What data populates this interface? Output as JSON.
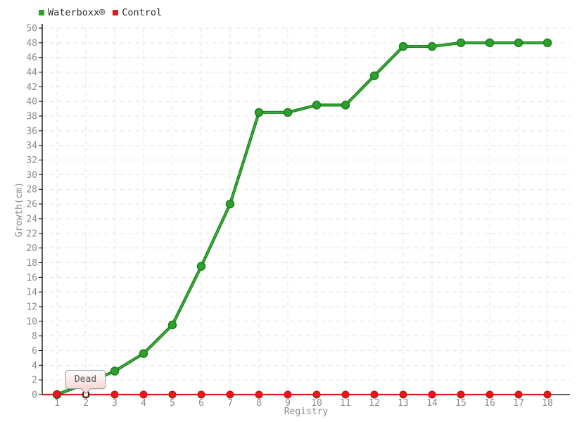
{
  "legend": {
    "items": [
      {
        "label": "Waterboxx®",
        "color": "#2CA22C"
      },
      {
        "label": "Control",
        "color": "#E11A1A"
      }
    ]
  },
  "tooltip": {
    "text": "Dead",
    "series": "Control",
    "x": 2,
    "value": 0
  },
  "chart_data": {
    "type": "line",
    "x": [
      1,
      2,
      3,
      4,
      5,
      6,
      7,
      8,
      9,
      10,
      11,
      12,
      13,
      14,
      15,
      16,
      17,
      18
    ],
    "series": [
      {
        "name": "Waterboxx®",
        "color": "#2CA22C",
        "edge_color": "#1C7E1C",
        "highlight_color": "#38B038",
        "values": [
          0,
          1.5,
          3.2,
          5.6,
          9.5,
          17.5,
          26,
          38.5,
          38.5,
          39.5,
          39.5,
          43.5,
          47.5,
          47.5,
          48,
          48,
          48,
          48
        ]
      },
      {
        "name": "Control",
        "color": "#E11A1A",
        "edge_color": "#BE1010",
        "values": [
          0,
          0,
          0,
          0,
          0,
          0,
          0,
          0,
          0,
          0,
          0,
          0,
          0,
          0,
          0,
          0,
          0,
          0
        ]
      }
    ],
    "xlabel": "Registry",
    "ylabel": "Growth(cm)",
    "xlim": [
      1,
      18
    ],
    "ylim": [
      0,
      50
    ],
    "ytick_step": 2,
    "xtick_step": 1,
    "grid": true,
    "grid_color": "#E1E1E1",
    "axis_color": "#000000",
    "tick_label_color": "#8C8C8C",
    "legend_position": "top-left",
    "annotations": [
      {
        "text": "Dead",
        "series": "Control",
        "x": 2,
        "y": 0,
        "selected_marker": "white-square"
      }
    ]
  }
}
